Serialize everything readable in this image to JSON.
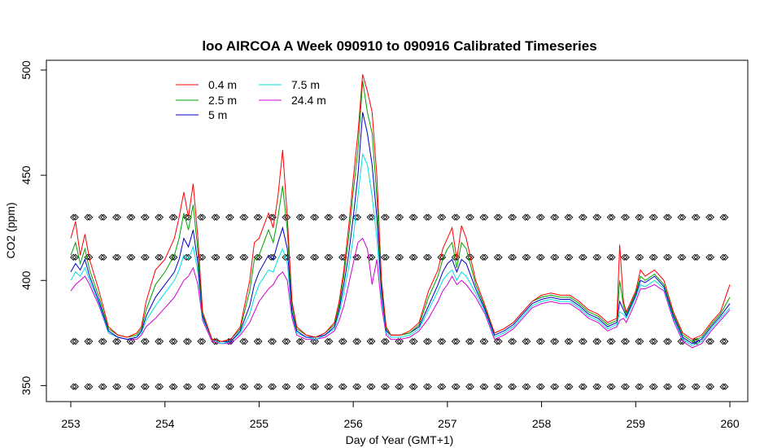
{
  "chart_data": {
    "type": "line",
    "title": "loo AIRCOA A  Week 090910 to 090916  Calibrated Timeseries",
    "xlabel": "Day of Year (GMT+1)",
    "ylabel": "CO2 (ppm)",
    "xlim": [
      253,
      260
    ],
    "ylim": [
      349,
      500
    ],
    "xticks": [
      "253",
      "254",
      "255",
      "256",
      "257",
      "258",
      "259",
      "260"
    ],
    "yticks": [
      "350",
      "400",
      "450",
      "500"
    ],
    "legend_position": "top-left",
    "series": [
      {
        "name": "0.4 m",
        "color": "#ff0000",
        "x": [
          253.0,
          253.05,
          253.1,
          253.15,
          253.2,
          253.3,
          253.4,
          253.5,
          253.6,
          253.7,
          253.75,
          253.8,
          253.9,
          254.0,
          254.1,
          254.15,
          254.2,
          254.25,
          254.3,
          254.35,
          254.4,
          254.5,
          254.6,
          254.7,
          254.8,
          254.9,
          254.95,
          255.0,
          255.1,
          255.15,
          255.2,
          255.25,
          255.3,
          255.35,
          255.4,
          255.5,
          255.6,
          255.7,
          255.8,
          255.85,
          255.9,
          255.95,
          256.0,
          256.05,
          256.1,
          256.15,
          256.2,
          256.25,
          256.3,
          256.35,
          256.4,
          256.5,
          256.6,
          256.7,
          256.8,
          256.9,
          256.95,
          257.0,
          257.05,
          257.1,
          257.15,
          257.2,
          257.3,
          257.4,
          257.5,
          257.6,
          257.7,
          257.8,
          257.9,
          258.0,
          258.1,
          258.2,
          258.3,
          258.4,
          258.5,
          258.6,
          258.7,
          258.8,
          258.83,
          258.87,
          258.9,
          259.0,
          259.05,
          259.1,
          259.2,
          259.3,
          259.4,
          259.5,
          259.6,
          259.7,
          259.8,
          259.9,
          260.0
        ],
        "y": [
          420,
          428,
          412,
          422,
          410,
          395,
          378,
          374,
          373,
          375,
          378,
          390,
          405,
          410,
          420,
          430,
          442,
          430,
          446,
          420,
          385,
          372,
          371,
          372,
          378,
          400,
          418,
          420,
          432,
          425,
          440,
          462,
          430,
          390,
          378,
          374,
          373,
          375,
          380,
          390,
          405,
          425,
          448,
          470,
          498,
          490,
          480,
          450,
          400,
          378,
          374,
          374,
          376,
          380,
          395,
          405,
          415,
          420,
          425,
          410,
          426,
          420,
          400,
          388,
          375,
          377,
          380,
          385,
          390,
          393,
          394,
          393,
          393,
          390,
          386,
          384,
          380,
          382,
          417,
          390,
          385,
          395,
          405,
          402,
          405,
          400,
          385,
          375,
          372,
          374,
          380,
          385,
          398
        ]
      },
      {
        "name": "2.5 m",
        "color": "#00a000",
        "x": [
          253.0,
          253.05,
          253.1,
          253.15,
          253.2,
          253.3,
          253.4,
          253.5,
          253.6,
          253.7,
          253.75,
          253.8,
          253.9,
          254.0,
          254.1,
          254.15,
          254.2,
          254.25,
          254.3,
          254.35,
          254.4,
          254.5,
          254.6,
          254.7,
          254.8,
          254.9,
          254.95,
          255.0,
          255.1,
          255.15,
          255.2,
          255.25,
          255.3,
          255.35,
          255.4,
          255.5,
          255.6,
          255.7,
          255.8,
          255.85,
          255.9,
          255.95,
          256.0,
          256.05,
          256.1,
          256.15,
          256.2,
          256.25,
          256.3,
          256.35,
          256.4,
          256.5,
          256.6,
          256.7,
          256.8,
          256.9,
          256.95,
          257.0,
          257.05,
          257.1,
          257.15,
          257.2,
          257.3,
          257.4,
          257.5,
          257.6,
          257.7,
          257.8,
          257.9,
          258.0,
          258.1,
          258.2,
          258.3,
          258.4,
          258.5,
          258.6,
          258.7,
          258.8,
          258.83,
          258.87,
          258.9,
          259.0,
          259.05,
          259.1,
          259.2,
          259.3,
          259.4,
          259.5,
          259.6,
          259.7,
          259.8,
          259.9,
          260.0
        ],
        "y": [
          412,
          418,
          408,
          415,
          405,
          392,
          377,
          374,
          373,
          374,
          377,
          386,
          398,
          404,
          412,
          420,
          432,
          424,
          436,
          414,
          384,
          372,
          371,
          372,
          377,
          395,
          410,
          412,
          424,
          418,
          430,
          445,
          424,
          388,
          377,
          374,
          373,
          375,
          379,
          388,
          402,
          420,
          442,
          462,
          495,
          480,
          470,
          440,
          398,
          377,
          374,
          374,
          375,
          379,
          392,
          402,
          410,
          415,
          418,
          406,
          418,
          415,
          398,
          387,
          375,
          377,
          380,
          385,
          390,
          392,
          393,
          392,
          392,
          389,
          385,
          383,
          379,
          381,
          400,
          388,
          384,
          394,
          402,
          400,
          403,
          398,
          384,
          374,
          371,
          373,
          379,
          384,
          392
        ]
      },
      {
        "name": "5 m",
        "color": "#0000c8",
        "x": [
          253.0,
          253.05,
          253.1,
          253.15,
          253.2,
          253.3,
          253.4,
          253.5,
          253.6,
          253.7,
          253.75,
          253.8,
          253.9,
          254.0,
          254.1,
          254.15,
          254.2,
          254.25,
          254.3,
          254.35,
          254.4,
          254.5,
          254.6,
          254.7,
          254.8,
          254.9,
          254.95,
          255.0,
          255.1,
          255.15,
          255.2,
          255.25,
          255.3,
          255.35,
          255.4,
          255.5,
          255.6,
          255.7,
          255.8,
          255.85,
          255.9,
          255.95,
          256.0,
          256.05,
          256.1,
          256.15,
          256.2,
          256.25,
          256.3,
          256.35,
          256.4,
          256.5,
          256.6,
          256.7,
          256.8,
          256.9,
          256.95,
          257.0,
          257.05,
          257.1,
          257.15,
          257.2,
          257.3,
          257.4,
          257.5,
          257.6,
          257.7,
          257.8,
          257.9,
          258.0,
          258.1,
          258.2,
          258.3,
          258.4,
          258.5,
          258.6,
          258.7,
          258.8,
          258.83,
          258.87,
          258.9,
          259.0,
          259.05,
          259.1,
          259.2,
          259.3,
          259.4,
          259.5,
          259.6,
          259.7,
          259.8,
          259.9,
          260.0
        ],
        "y": [
          404,
          408,
          405,
          410,
          402,
          390,
          376,
          373,
          372,
          373,
          376,
          383,
          392,
          398,
          404,
          410,
          420,
          416,
          424,
          408,
          383,
          372,
          371,
          371,
          376,
          388,
          398,
          404,
          412,
          410,
          418,
          425,
          415,
          385,
          376,
          373,
          373,
          374,
          378,
          386,
          398,
          412,
          430,
          450,
          480,
          470,
          455,
          430,
          395,
          376,
          374,
          374,
          375,
          378,
          388,
          398,
          404,
          408,
          410,
          404,
          410,
          408,
          396,
          386,
          374,
          376,
          379,
          384,
          389,
          391,
          392,
          391,
          391,
          388,
          384,
          382,
          378,
          380,
          390,
          386,
          383,
          393,
          400,
          399,
          402,
          397,
          383,
          373,
          370,
          372,
          378,
          383,
          389
        ]
      },
      {
        "name": "7.5 m",
        "color": "#00e0e0",
        "x": [
          253.0,
          253.05,
          253.1,
          253.15,
          253.2,
          253.3,
          253.4,
          253.5,
          253.6,
          253.7,
          253.75,
          253.8,
          253.9,
          254.0,
          254.1,
          254.15,
          254.2,
          254.25,
          254.3,
          254.35,
          254.4,
          254.5,
          254.6,
          254.7,
          254.8,
          254.9,
          254.95,
          255.0,
          255.1,
          255.15,
          255.2,
          255.25,
          255.3,
          255.35,
          255.4,
          255.5,
          255.6,
          255.7,
          255.8,
          255.85,
          255.9,
          255.95,
          256.0,
          256.05,
          256.1,
          256.15,
          256.2,
          256.25,
          256.3,
          256.35,
          256.4,
          256.5,
          256.6,
          256.7,
          256.8,
          256.9,
          256.95,
          257.0,
          257.05,
          257.1,
          257.15,
          257.2,
          257.3,
          257.4,
          257.5,
          257.6,
          257.7,
          257.8,
          257.9,
          258.0,
          258.1,
          258.2,
          258.3,
          258.4,
          258.5,
          258.6,
          258.7,
          258.8,
          258.83,
          258.87,
          258.9,
          259.0,
          259.05,
          259.1,
          259.2,
          259.3,
          259.4,
          259.5,
          259.6,
          259.7,
          259.8,
          259.9,
          260.0
        ],
        "y": [
          400,
          404,
          402,
          406,
          400,
          389,
          375,
          373,
          372,
          373,
          375,
          381,
          388,
          394,
          400,
          405,
          412,
          410,
          416,
          404,
          382,
          372,
          370,
          371,
          375,
          384,
          392,
          398,
          405,
          404,
          410,
          415,
          408,
          384,
          375,
          373,
          372,
          374,
          377,
          384,
          394,
          406,
          420,
          440,
          460,
          455,
          440,
          420,
          392,
          375,
          373,
          373,
          374,
          377,
          386,
          395,
          400,
          403,
          405,
          400,
          404,
          402,
          394,
          385,
          373,
          375,
          378,
          383,
          388,
          390,
          391,
          390,
          390,
          387,
          383,
          381,
          377,
          379,
          385,
          384,
          382,
          392,
          398,
          397,
          400,
          396,
          382,
          372,
          369,
          371,
          377,
          382,
          387
        ]
      },
      {
        "name": "24.4 m",
        "color": "#d000d0",
        "x": [
          253.0,
          253.05,
          253.1,
          253.15,
          253.2,
          253.3,
          253.4,
          253.5,
          253.6,
          253.7,
          253.75,
          253.8,
          253.9,
          254.0,
          254.1,
          254.15,
          254.2,
          254.25,
          254.3,
          254.35,
          254.4,
          254.5,
          254.6,
          254.7,
          254.8,
          254.9,
          254.95,
          255.0,
          255.1,
          255.15,
          255.2,
          255.25,
          255.3,
          255.35,
          255.4,
          255.5,
          255.6,
          255.7,
          255.8,
          255.85,
          255.9,
          255.95,
          256.0,
          256.05,
          256.1,
          256.15,
          256.2,
          256.25,
          256.3,
          256.35,
          256.4,
          256.5,
          256.6,
          256.7,
          256.8,
          256.9,
          256.95,
          257.0,
          257.05,
          257.1,
          257.15,
          257.2,
          257.3,
          257.4,
          257.5,
          257.6,
          257.7,
          257.8,
          257.9,
          258.0,
          258.1,
          258.2,
          258.3,
          258.4,
          258.5,
          258.6,
          258.7,
          258.8,
          258.83,
          258.87,
          258.9,
          259.0,
          259.05,
          259.1,
          259.2,
          259.3,
          259.4,
          259.5,
          259.6,
          259.7,
          259.8,
          259.9,
          260.0
        ],
        "y": [
          395,
          398,
          400,
          402,
          398,
          388,
          375,
          373,
          372,
          372,
          374,
          378,
          382,
          387,
          392,
          396,
          400,
          402,
          406,
          398,
          381,
          371,
          370,
          370,
          374,
          380,
          385,
          390,
          396,
          398,
          402,
          404,
          400,
          382,
          374,
          372,
          372,
          373,
          376,
          381,
          388,
          398,
          408,
          418,
          420,
          415,
          398,
          410,
          388,
          374,
          372,
          372,
          373,
          376,
          382,
          390,
          395,
          398,
          402,
          398,
          400,
          398,
          392,
          384,
          372,
          374,
          377,
          382,
          387,
          389,
          390,
          389,
          389,
          386,
          382,
          380,
          376,
          378,
          381,
          382,
          380,
          390,
          396,
          396,
          398,
          395,
          381,
          371,
          368,
          370,
          376,
          381,
          386
        ]
      }
    ],
    "calibration_levels": [
      349.5,
      371,
      411,
      430
    ],
    "calibration_times": [
      253.05,
      253.2,
      253.35,
      253.5,
      253.65,
      253.8,
      253.95,
      254.1,
      254.25,
      254.4,
      254.55,
      254.7,
      254.85,
      255.0,
      255.15,
      255.3,
      255.45,
      255.6,
      255.75,
      255.9,
      256.05,
      256.2,
      256.35,
      256.5,
      256.65,
      256.8,
      256.95,
      257.1,
      257.25,
      257.4,
      257.55,
      257.7,
      257.85,
      258.0,
      258.15,
      258.3,
      258.45,
      258.6,
      258.75,
      258.9,
      259.05,
      259.2,
      259.35,
      259.5,
      259.65,
      259.8,
      259.95
    ]
  }
}
